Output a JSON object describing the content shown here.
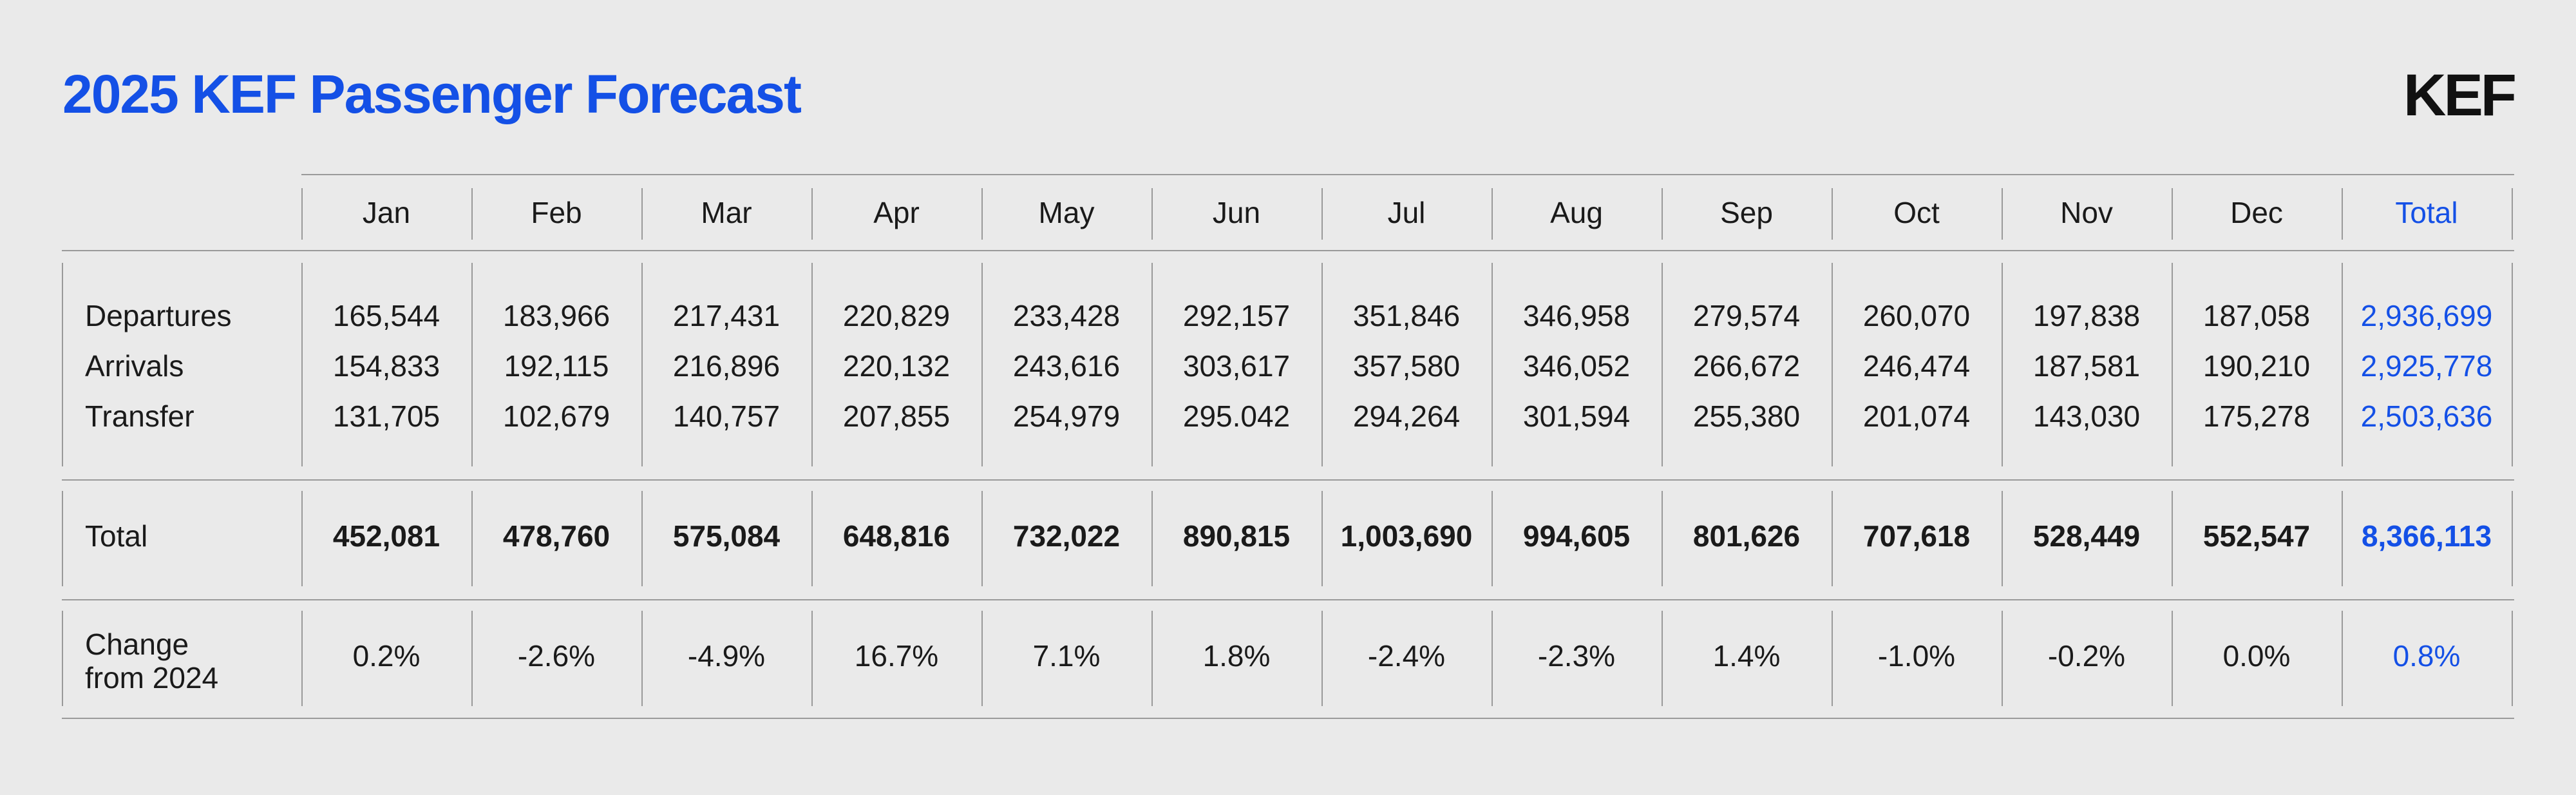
{
  "header": {
    "title": "2025 KEF Passenger Forecast",
    "logo": "KEF"
  },
  "colors": {
    "accent": "#1450e6",
    "background": "#eaeaea",
    "rule": "#9a9a9a"
  },
  "table": {
    "columns": [
      "Jan",
      "Feb",
      "Mar",
      "Apr",
      "May",
      "Jun",
      "Jul",
      "Aug",
      "Sep",
      "Oct",
      "Nov",
      "Dec",
      "Total"
    ],
    "rows": [
      {
        "label": "Departures",
        "values": [
          "165,544",
          "183,966",
          "217,431",
          "220,829",
          "233,428",
          "292,157",
          "351,846",
          "346,958",
          "279,574",
          "260,070",
          "197,838",
          "187,058",
          "2,936,699"
        ]
      },
      {
        "label": "Arrivals",
        "values": [
          "154,833",
          "192,115",
          "216,896",
          "220,132",
          "243,616",
          "303,617",
          "357,580",
          "346,052",
          "266,672",
          "246,474",
          "187,581",
          "190,210",
          "2,925,778"
        ]
      },
      {
        "label": "Transfer",
        "values": [
          "131,705",
          "102,679",
          "140,757",
          "207,855",
          "254,979",
          "295.042",
          "294,264",
          "301,594",
          "255,380",
          "201,074",
          "143,030",
          "175,278",
          "2,503,636"
        ]
      }
    ],
    "total": {
      "label": "Total",
      "values": [
        "452,081",
        "478,760",
        "575,084",
        "648,816",
        "732,022",
        "890,815",
        "1,003,690",
        "994,605",
        "801,626",
        "707,618",
        "528,449",
        "552,547",
        "8,366,113"
      ]
    },
    "change": {
      "label_line1": "Change",
      "label_line2": "from 2024",
      "values": [
        "0.2%",
        "-2.6%",
        "-4.9%",
        "16.7%",
        "7.1%",
        "1.8%",
        "-2.4%",
        "-2.3%",
        "1.4%",
        "-1.0%",
        "-0.2%",
        "0.0%",
        "0.8%"
      ]
    }
  }
}
